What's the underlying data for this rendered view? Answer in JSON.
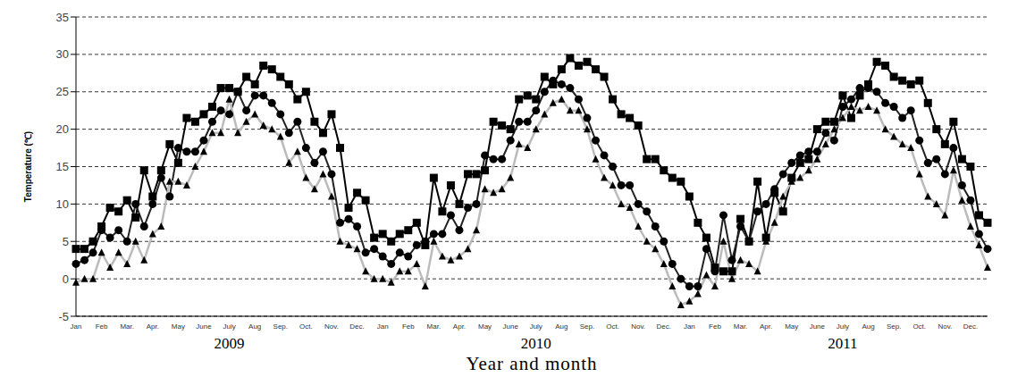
{
  "chart_data": {
    "type": "line",
    "y_label": "Temperature (℃)",
    "x_label": "Year and month",
    "year_labels": [
      "2009",
      "2010",
      "2011"
    ],
    "categories": [
      "Jan",
      null,
      null,
      "Feb",
      null,
      null,
      "Mar.",
      null,
      null,
      "Apr.",
      null,
      null,
      "May",
      null,
      null,
      "June",
      null,
      null,
      "July",
      null,
      null,
      "Aug",
      null,
      null,
      "Sep.",
      null,
      null,
      "Oct.",
      null,
      null,
      "Nov.",
      null,
      null,
      "Dec.",
      null,
      null,
      "Jan",
      null,
      null,
      "Feb",
      null,
      null,
      "Mar.",
      null,
      null,
      "Apr.",
      null,
      null,
      "May",
      null,
      null,
      "June",
      null,
      null,
      "July",
      null,
      null,
      "Aug",
      null,
      null,
      "Sep.",
      null,
      null,
      "Oct.",
      null,
      null,
      "Nov.",
      null,
      null,
      "Dec.",
      null,
      null,
      "Jan",
      null,
      null,
      "Feb",
      null,
      null,
      "Mar.",
      null,
      null,
      "Apr.",
      null,
      null,
      "May",
      null,
      null,
      "June",
      null,
      null,
      "July",
      null,
      null,
      "Aug",
      null,
      null,
      "Sep.",
      null,
      null,
      "Oct.",
      null,
      null,
      "Nov.",
      null,
      null,
      "Dec.",
      null,
      null
    ],
    "series": [
      {
        "color": "#000000",
        "marker": "square",
        "line_style": "solid",
        "values": [
          4,
          4,
          5,
          7,
          9.5,
          9,
          10.5,
          8.2,
          14.5,
          11,
          14.5,
          18,
          15.5,
          21.5,
          21,
          22,
          23,
          25.5,
          25.5,
          25,
          27,
          26,
          28.5,
          28,
          27,
          26,
          24,
          25,
          21,
          19.5,
          22,
          17.5,
          9.5,
          11.5,
          10.5,
          5.5,
          6,
          5,
          6,
          6.5,
          7.5,
          4.5,
          13.5,
          9,
          12.5,
          10,
          14,
          14,
          14.5,
          21,
          20.5,
          20,
          24,
          24.5,
          24,
          27,
          26,
          28,
          29.5,
          28.5,
          29,
          28,
          27,
          24,
          22,
          21.5,
          20.5,
          16,
          16,
          14.5,
          13.5,
          13,
          11,
          7.5,
          5.5,
          1.5,
          1,
          1,
          8,
          5,
          13,
          5.5,
          11.5,
          9,
          13.5,
          15.5,
          16,
          20,
          21,
          21,
          24.5,
          21.5,
          24.5,
          26,
          29,
          28.5,
          27,
          26.5,
          26,
          26.5,
          23.5,
          20,
          18,
          21,
          16,
          15,
          8.5,
          7.5
        ]
      },
      {
        "color": "#222222",
        "marker": "circle",
        "line_style": "solid",
        "values": [
          2,
          2.5,
          3.5,
          6.5,
          5.5,
          6.5,
          5,
          10,
          7,
          10,
          13.5,
          11,
          17.5,
          17,
          17,
          18.5,
          21,
          22.5,
          22,
          25,
          22.5,
          24.5,
          24.5,
          23.5,
          22,
          19.5,
          21,
          17.5,
          15.5,
          17,
          14,
          7.5,
          8,
          7,
          3.5,
          4,
          3,
          2,
          3.5,
          3,
          4.5,
          5,
          6,
          6,
          8.5,
          6.5,
          9.5,
          10,
          16.5,
          16,
          16,
          18.5,
          21,
          21,
          22.5,
          25,
          26.5,
          26,
          25.5,
          24,
          21.5,
          18.5,
          16.5,
          15,
          12.5,
          12.5,
          10,
          9,
          7,
          5,
          2,
          0,
          -1,
          -1,
          4,
          1,
          8.5,
          2.5,
          7,
          5,
          9,
          10,
          12,
          14,
          15.5,
          16.5,
          17,
          17,
          19.5,
          18.5,
          23,
          24,
          25.5,
          25.5,
          25,
          23.5,
          23,
          21.5,
          22.5,
          18.5,
          15.5,
          16,
          14,
          17.5,
          12.5,
          10.5,
          6,
          4
        ]
      },
      {
        "color": "#bbbbbb",
        "marker": "triangle",
        "line_style": "solid",
        "values": [
          -0.5,
          0,
          0,
          3.5,
          1.5,
          3.5,
          2,
          5,
          2.5,
          6,
          7,
          13,
          13,
          12.5,
          15,
          17,
          19.5,
          19.5,
          24,
          19.5,
          21,
          22,
          20.5,
          20,
          19,
          15.5,
          17,
          13.5,
          12,
          14,
          11,
          5,
          4.5,
          4,
          1,
          0,
          0,
          -0.5,
          1,
          1,
          2,
          -1,
          5,
          3,
          2.5,
          3,
          4,
          6.5,
          12,
          11.5,
          12,
          13.5,
          18,
          17.5,
          20,
          22,
          23.5,
          24,
          22.5,
          22.5,
          20,
          16,
          13.5,
          12.5,
          10,
          9.5,
          7,
          5,
          4,
          2,
          -1,
          -3.5,
          -3,
          -2,
          0.5,
          -1,
          5,
          0,
          2.5,
          2,
          1,
          5,
          7.5,
          11,
          13,
          13.5,
          14.5,
          16,
          18,
          20,
          21.5,
          23,
          22.5,
          23,
          22.5,
          20,
          19,
          18,
          17.5,
          14,
          11,
          10,
          8.5,
          14.5,
          10.5,
          7,
          4.5,
          1.5
        ]
      }
    ],
    "ylim": [
      -5,
      35
    ],
    "yticks": [
      -5,
      0,
      5,
      10,
      15,
      20,
      25,
      30,
      35
    ],
    "grid": true
  }
}
